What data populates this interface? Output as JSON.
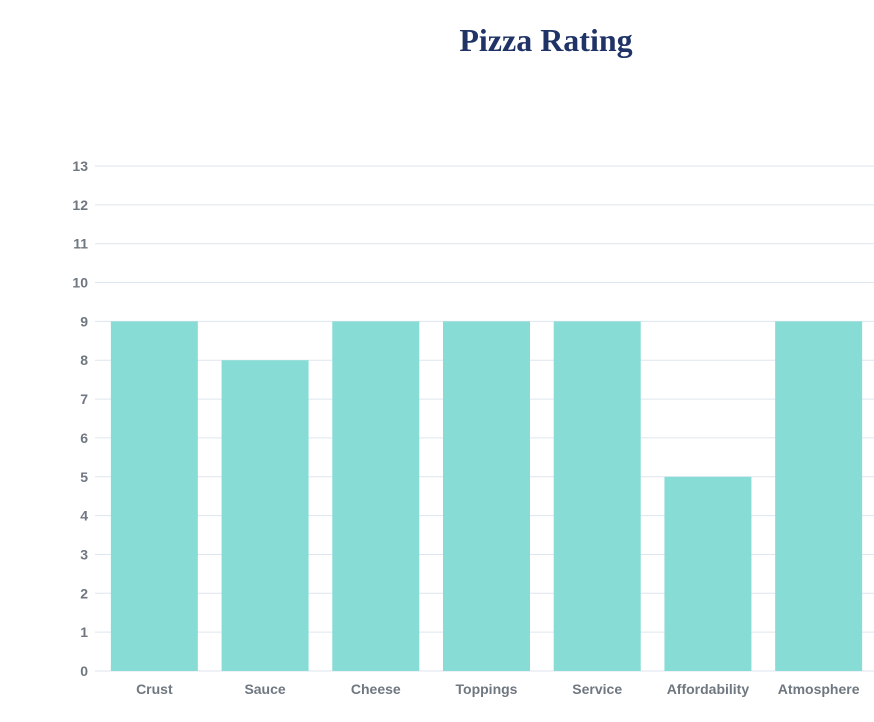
{
  "chart_data": {
    "type": "bar",
    "title": "Pizza Rating",
    "categories": [
      "Crust",
      "Sauce",
      "Cheese",
      "Toppings",
      "Service",
      "Affordability",
      "Atmosphere"
    ],
    "values": [
      9,
      8,
      9,
      9,
      9,
      5,
      9
    ],
    "xlabel": "",
    "ylabel": "",
    "ylim": [
      0,
      13
    ],
    "yticks": [
      "0",
      "1",
      "2",
      "3",
      "4",
      "5",
      "6",
      "7",
      "8",
      "9",
      "10",
      "11",
      "12",
      "13"
    ],
    "grid": true,
    "legend": "none",
    "bar_color": "#87ddd5",
    "grid_color": "#dde6ee"
  }
}
